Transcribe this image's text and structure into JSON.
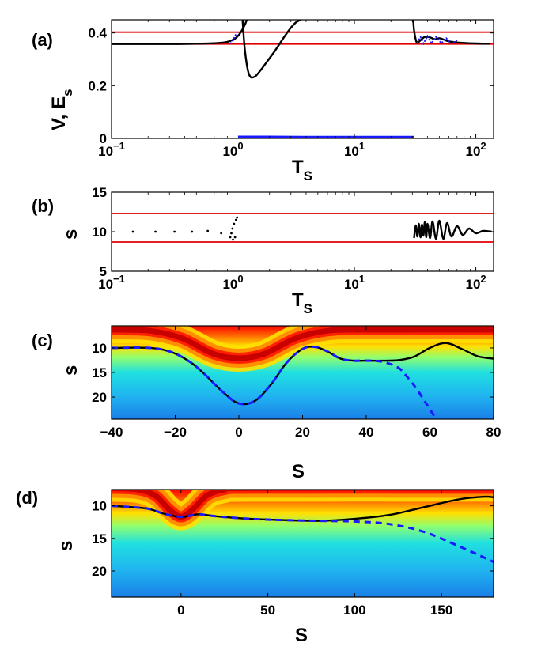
{
  "colors": {
    "reference_line": "#e00000",
    "curve_solid": "#000000",
    "curve_dashed": "#1a1aff",
    "points": "#000000"
  },
  "panels": [
    {
      "id": "a",
      "label": "(a)",
      "xlabel": "T",
      "xlabel_sub": "S",
      "ylabel": "V, E",
      "ylabel_sub": "s",
      "xscale": "log",
      "xlim": [
        0.1,
        140
      ],
      "ylim": [
        0,
        0.45
      ],
      "xticks": [
        {
          "v": 0.1,
          "base": "10",
          "exp": "−1"
        },
        {
          "v": 1,
          "base": "10",
          "exp": "0"
        },
        {
          "v": 10,
          "base": "10",
          "exp": "1"
        },
        {
          "v": 100,
          "base": "10",
          "exp": "2"
        }
      ],
      "yticks": [
        {
          "v": 0,
          "t": "0"
        },
        {
          "v": 0.2,
          "t": "0.2"
        },
        {
          "v": 0.4,
          "t": "0.4"
        }
      ]
    },
    {
      "id": "b",
      "label": "(b)",
      "xlabel": "T",
      "xlabel_sub": "S",
      "ylabel": "s",
      "xscale": "log",
      "xlim": [
        0.1,
        140
      ],
      "ylim": [
        5,
        15
      ],
      "xticks": [
        {
          "v": 0.1,
          "base": "10",
          "exp": "−1"
        },
        {
          "v": 1,
          "base": "10",
          "exp": "0"
        },
        {
          "v": 10,
          "base": "10",
          "exp": "1"
        },
        {
          "v": 100,
          "base": "10",
          "exp": "2"
        }
      ],
      "yticks": [
        {
          "v": 5,
          "t": "5"
        },
        {
          "v": 10,
          "t": "10"
        },
        {
          "v": 15,
          "t": "15"
        }
      ]
    },
    {
      "id": "c",
      "label": "(c)",
      "xlabel": "S",
      "ylabel": "s",
      "xlim": [
        -40,
        80
      ],
      "ylim": [
        24.5,
        5.5
      ],
      "xticks": [
        {
          "v": -40,
          "t": "−40"
        },
        {
          "v": -20,
          "t": "−20"
        },
        {
          "v": 0,
          "t": "0"
        },
        {
          "v": 20,
          "t": "20"
        },
        {
          "v": 40,
          "t": "40"
        },
        {
          "v": 60,
          "t": "60"
        },
        {
          "v": 80,
          "t": "80"
        }
      ],
      "yticks": [
        {
          "v": 10,
          "t": "10"
        },
        {
          "v": 15,
          "t": "15"
        },
        {
          "v": 20,
          "t": "20"
        }
      ]
    },
    {
      "id": "d",
      "label": "(d)",
      "xlabel": "S",
      "ylabel": "s",
      "xlim": [
        -40,
        180
      ],
      "ylim": [
        24,
        7.5
      ],
      "xticks": [
        {
          "v": 0,
          "t": "0"
        },
        {
          "v": 50,
          "t": "50"
        },
        {
          "v": 100,
          "t": "100"
        },
        {
          "v": 150,
          "t": "150"
        }
      ],
      "yticks": [
        {
          "v": 10,
          "t": "10"
        },
        {
          "v": 15,
          "t": "15"
        },
        {
          "v": 20,
          "t": "20"
        }
      ]
    }
  ],
  "chart_data": [
    {
      "panel": "a",
      "type": "line",
      "title": "",
      "xlabel": "T_S",
      "ylabel": "V, E_s",
      "xlim": [
        0.1,
        140
      ],
      "ylim": [
        0,
        0.45
      ],
      "reference_lines_y": [
        0.358,
        0.403
      ],
      "series": [
        {
          "name": "V branch 1",
          "style": "solid-black",
          "x": [
            0.1,
            0.3,
            0.5,
            0.7,
            0.85,
            0.95,
            1.05,
            1.15,
            1.25,
            1.3
          ],
          "y": [
            0.358,
            0.358,
            0.359,
            0.361,
            0.364,
            0.37,
            0.38,
            0.4,
            0.43,
            0.45
          ]
        },
        {
          "name": "V branch 2",
          "style": "solid-black",
          "x": [
            1.2,
            1.22,
            1.25,
            1.3,
            1.35,
            1.4,
            1.45,
            1.55,
            1.7,
            1.9,
            2.2,
            2.6,
            3.0,
            3.3,
            3.6
          ],
          "y": [
            0.45,
            0.4,
            0.34,
            0.28,
            0.245,
            0.232,
            0.231,
            0.238,
            0.26,
            0.29,
            0.33,
            0.38,
            0.42,
            0.44,
            0.45
          ]
        },
        {
          "name": "V branch 3",
          "style": "solid-black",
          "x": [
            30.5,
            31,
            32,
            33,
            35,
            38,
            42,
            46,
            50,
            55,
            60,
            70,
            80,
            100,
            130
          ],
          "y": [
            0.45,
            0.41,
            0.375,
            0.362,
            0.372,
            0.385,
            0.383,
            0.376,
            0.38,
            0.374,
            0.368,
            0.364,
            0.362,
            0.36,
            0.359
          ]
        },
        {
          "name": "E_s branch 1",
          "style": "dotted-blue",
          "x": [
            0.95,
            1.0,
            1.03,
            1.06,
            1.08
          ],
          "y": [
            0.359,
            0.37,
            0.385,
            0.395,
            0.403
          ]
        },
        {
          "name": "E_s low",
          "style": "solid-blue",
          "x": [
            1.1,
            2,
            5,
            10,
            20,
            31
          ],
          "y": [
            0.006,
            0.006,
            0.005,
            0.005,
            0.005,
            0.005
          ]
        },
        {
          "name": "E_s branch 3",
          "style": "dotted-blue",
          "x": [
            33,
            35,
            37,
            40,
            43,
            47,
            52,
            57,
            63,
            70
          ],
          "y": [
            0.363,
            0.385,
            0.36,
            0.388,
            0.36,
            0.385,
            0.361,
            0.38,
            0.36,
            0.372
          ]
        }
      ]
    },
    {
      "panel": "b",
      "type": "scatter",
      "title": "",
      "xlabel": "T_S",
      "ylabel": "s",
      "xlim": [
        0.1,
        140
      ],
      "ylim": [
        5,
        15
      ],
      "reference_lines_y": [
        8.7,
        12.3
      ],
      "series": [
        {
          "name": "s points left",
          "style": "dots",
          "x": [
            0.15,
            0.23,
            0.33,
            0.46,
            0.62,
            0.8,
            0.95,
            0.97,
            0.99,
            1.0,
            1.02,
            1.04,
            1.06,
            1.08
          ],
          "y": [
            10,
            10,
            10,
            10,
            10.1,
            9.8,
            9.3,
            9.8,
            10.4,
            9.0,
            11.0,
            9.3,
            11.5,
            11.8
          ]
        },
        {
          "name": "s curve right",
          "style": "solid-black",
          "x": [
            31,
            32,
            33,
            34,
            35,
            36,
            37,
            38,
            39,
            40,
            42,
            44,
            47,
            50,
            54,
            58,
            63,
            70,
            78,
            88,
            100,
            115,
            135
          ],
          "y": [
            9.2,
            10.8,
            9.4,
            11.0,
            9.3,
            10.9,
            9.5,
            11.2,
            9.3,
            11.0,
            9.2,
            11.3,
            9.1,
            11.4,
            9.1,
            11.1,
            9.4,
            10.7,
            9.6,
            10.4,
            9.8,
            10.1,
            10.0
          ]
        }
      ]
    },
    {
      "panel": "c",
      "type": "heatmap",
      "title": "",
      "xlabel": "S",
      "ylabel": "s",
      "xlim": [
        -40,
        80
      ],
      "ylim": [
        24.5,
        5.5
      ],
      "background": "potential colormap (jet), red ridge along s≈7.5 with dip to s≈12 near S=0",
      "series": [
        {
          "name": "trajectory",
          "style": "solid-black",
          "x": [
            -40,
            -25,
            -15,
            -5,
            0,
            5,
            10,
            15,
            20,
            24,
            28,
            32,
            36,
            40,
            45,
            50,
            55,
            60,
            65,
            70,
            75,
            80
          ],
          "y": [
            10,
            10.2,
            13,
            19,
            21.3,
            20.8,
            17.5,
            13,
            10.2,
            9.8,
            10.8,
            12.2,
            12.6,
            12.6,
            12.6,
            12.5,
            11.8,
            10.0,
            9.0,
            10.2,
            11.7,
            12.2
          ]
        },
        {
          "name": "reference trajectory",
          "style": "dashed-blue",
          "x": [
            -40,
            -25,
            -15,
            -5,
            0,
            5,
            10,
            15,
            20,
            24,
            28,
            32,
            36,
            40,
            45,
            50,
            53,
            56,
            59,
            62
          ],
          "y": [
            10,
            10.2,
            13,
            19,
            21.3,
            20.8,
            17.5,
            13,
            10.2,
            9.8,
            10.8,
            12.2,
            12.6,
            12.6,
            12.8,
            14.0,
            16.0,
            18.5,
            21.5,
            24.5
          ]
        }
      ]
    },
    {
      "panel": "d",
      "type": "heatmap",
      "title": "",
      "xlabel": "S",
      "ylabel": "s",
      "xlim": [
        -40,
        180
      ],
      "ylim": [
        24,
        7.5
      ],
      "background": "potential colormap (jet), red ridge at top with V-shaped notch centered at S=0",
      "series": [
        {
          "name": "trajectory",
          "style": "solid-black",
          "x": [
            -40,
            -20,
            -10,
            0,
            10,
            20,
            40,
            60,
            80,
            100,
            120,
            140,
            160,
            175,
            180
          ],
          "y": [
            10.0,
            10.4,
            11.2,
            11.7,
            11.3,
            11.6,
            12.0,
            12.2,
            12.3,
            12.0,
            11.4,
            10.2,
            9.0,
            8.6,
            8.7
          ]
        },
        {
          "name": "reference trajectory",
          "style": "dashed-blue",
          "x": [
            -40,
            -20,
            -10,
            0,
            10,
            20,
            40,
            60,
            80,
            100,
            120,
            140,
            160,
            180
          ],
          "y": [
            10.0,
            10.4,
            11.2,
            11.7,
            11.3,
            11.6,
            12.0,
            12.2,
            12.3,
            12.4,
            12.8,
            14.0,
            16.2,
            18.6
          ]
        }
      ]
    }
  ]
}
